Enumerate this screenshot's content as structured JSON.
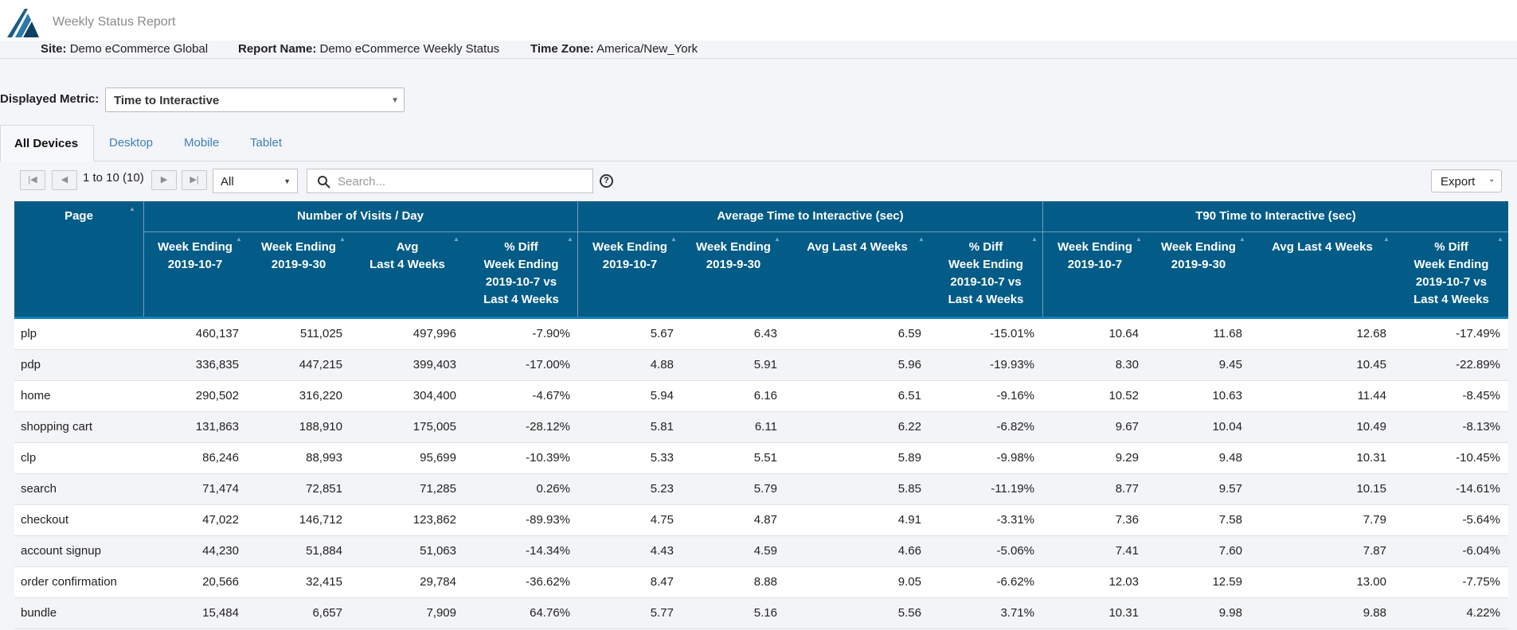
{
  "app": {
    "title": "Weekly Status Report"
  },
  "info": {
    "site_label": "Site:",
    "site_value": "Demo eCommerce Global",
    "report_label": "Report Name:",
    "report_value": "Demo eCommerce Weekly Status",
    "tz_label": "Time Zone:",
    "tz_value": "America/New_York"
  },
  "metric": {
    "label": "Displayed Metric:",
    "selected": "Time to Interactive"
  },
  "tabs": [
    {
      "label": "All Devices",
      "active": true
    },
    {
      "label": "Desktop",
      "active": false
    },
    {
      "label": "Mobile",
      "active": false
    },
    {
      "label": "Tablet",
      "active": false
    }
  ],
  "pager": {
    "range_text": "1 to 10 (10)",
    "page_size": "All"
  },
  "search": {
    "placeholder": "Search..."
  },
  "export": {
    "label": "Export"
  },
  "table": {
    "page_header": "Page",
    "groups": [
      "Number of Visits / Day",
      "Average Time to Interactive (sec)",
      "T90 Time to Interactive (sec)"
    ],
    "subheaders": [
      [
        "Week Ending",
        "2019-10-7"
      ],
      [
        "Week Ending",
        "2019-9-30"
      ],
      [
        "Avg",
        "Last 4 Weeks"
      ],
      [
        "% Diff",
        "Week Ending",
        "2019-10-7 vs",
        "Last 4 Weeks"
      ],
      [
        "Week Ending",
        "2019-10-7"
      ],
      [
        "Week Ending",
        "2019-9-30"
      ],
      [
        "Avg Last 4 Weeks"
      ],
      [
        "% Diff",
        "Week Ending",
        "2019-10-7 vs",
        "Last 4 Weeks"
      ],
      [
        "Week Ending",
        "2019-10-7"
      ],
      [
        "Week Ending",
        "2019-9-30"
      ],
      [
        "Avg Last 4 Weeks"
      ],
      [
        "% Diff",
        "Week Ending",
        "2019-10-7 vs",
        "Last 4 Weeks"
      ]
    ],
    "rows": [
      [
        "plp",
        "460,137",
        "511,025",
        "497,996",
        "-7.90%",
        "5.67",
        "6.43",
        "6.59",
        "-15.01%",
        "10.64",
        "11.68",
        "12.68",
        "-17.49%"
      ],
      [
        "pdp",
        "336,835",
        "447,215",
        "399,403",
        "-17.00%",
        "4.88",
        "5.91",
        "5.96",
        "-19.93%",
        "8.30",
        "9.45",
        "10.45",
        "-22.89%"
      ],
      [
        "home",
        "290,502",
        "316,220",
        "304,400",
        "-4.67%",
        "5.94",
        "6.16",
        "6.51",
        "-9.16%",
        "10.52",
        "10.63",
        "11.44",
        "-8.45%"
      ],
      [
        "shopping cart",
        "131,863",
        "188,910",
        "175,005",
        "-28.12%",
        "5.81",
        "6.11",
        "6.22",
        "-6.82%",
        "9.67",
        "10.04",
        "10.49",
        "-8.13%"
      ],
      [
        "clp",
        "86,246",
        "88,993",
        "95,699",
        "-10.39%",
        "5.33",
        "5.51",
        "5.89",
        "-9.98%",
        "9.29",
        "9.48",
        "10.31",
        "-10.45%"
      ],
      [
        "search",
        "71,474",
        "72,851",
        "71,285",
        "0.26%",
        "5.23",
        "5.79",
        "5.85",
        "-11.19%",
        "8.77",
        "9.57",
        "10.15",
        "-14.61%"
      ],
      [
        "checkout",
        "47,022",
        "146,712",
        "123,862",
        "-89.93%",
        "4.75",
        "4.87",
        "4.91",
        "-3.31%",
        "7.36",
        "7.58",
        "7.79",
        "-5.64%"
      ],
      [
        "account signup",
        "44,230",
        "51,884",
        "51,063",
        "-14.34%",
        "4.43",
        "4.59",
        "4.66",
        "-5.06%",
        "7.41",
        "7.60",
        "7.87",
        "-6.04%"
      ],
      [
        "order confirmation",
        "20,566",
        "32,415",
        "29,784",
        "-36.62%",
        "8.47",
        "8.88",
        "9.05",
        "-6.62%",
        "12.03",
        "12.59",
        "13.00",
        "-7.75%"
      ],
      [
        "bundle",
        "15,484",
        "6,657",
        "7,909",
        "64.76%",
        "5.77",
        "5.16",
        "5.56",
        "3.71%",
        "10.31",
        "9.98",
        "9.88",
        "4.22%"
      ]
    ]
  }
}
